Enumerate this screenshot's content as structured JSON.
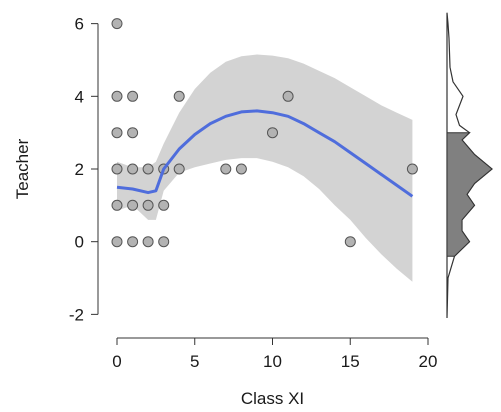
{
  "chart_data": {
    "type": "scatter",
    "xlabel": "Class XI",
    "ylabel": "Teacher",
    "xlim": [
      -0.5,
      19.5
    ],
    "ylim": [
      -2.1,
      6.1
    ],
    "x_ticks": [
      0,
      5,
      10,
      15,
      20
    ],
    "y_ticks": [
      -2,
      0,
      2,
      4,
      6
    ],
    "x_tick_labels": [
      "0",
      "5",
      "10",
      "15",
      "20"
    ],
    "y_tick_labels": [
      "-2",
      "0",
      "2",
      "4",
      "6"
    ],
    "grid": false,
    "points": [
      {
        "x": 0,
        "y": 6
      },
      {
        "x": 0,
        "y": 4
      },
      {
        "x": 1,
        "y": 4
      },
      {
        "x": 4,
        "y": 4
      },
      {
        "x": 11,
        "y": 4
      },
      {
        "x": 0,
        "y": 3
      },
      {
        "x": 1,
        "y": 3
      },
      {
        "x": 10,
        "y": 3
      },
      {
        "x": 0,
        "y": 2
      },
      {
        "x": 1,
        "y": 2
      },
      {
        "x": 2,
        "y": 2
      },
      {
        "x": 3,
        "y": 2
      },
      {
        "x": 4,
        "y": 2
      },
      {
        "x": 7,
        "y": 2
      },
      {
        "x": 8,
        "y": 2
      },
      {
        "x": 19,
        "y": 2
      },
      {
        "x": 0,
        "y": 1
      },
      {
        "x": 1,
        "y": 1
      },
      {
        "x": 2,
        "y": 1
      },
      {
        "x": 3,
        "y": 1
      },
      {
        "x": 0,
        "y": 0
      },
      {
        "x": 1,
        "y": 0
      },
      {
        "x": 2,
        "y": 0
      },
      {
        "x": 3,
        "y": 0
      },
      {
        "x": 15,
        "y": 0
      }
    ],
    "smooth_fit": {
      "x": [
        0,
        1,
        2,
        2.5,
        3,
        4,
        5,
        6,
        7,
        8,
        9,
        10,
        11,
        12,
        13,
        14,
        15,
        16,
        17,
        18,
        19
      ],
      "y": [
        1.5,
        1.45,
        1.35,
        1.4,
        2.0,
        2.55,
        2.95,
        3.25,
        3.45,
        3.57,
        3.6,
        3.55,
        3.45,
        3.25,
        3.0,
        2.75,
        2.45,
        2.15,
        1.85,
        1.55,
        1.25
      ],
      "lower": [
        0.85,
        1.0,
        0.6,
        0.6,
        1.4,
        1.9,
        2.05,
        2.15,
        2.25,
        2.3,
        2.3,
        2.2,
        2.05,
        1.8,
        1.45,
        1.0,
        0.6,
        0.1,
        -0.35,
        -0.75,
        -1.1
      ],
      "upper": [
        2.2,
        2.05,
        2.05,
        2.2,
        2.7,
        3.55,
        4.2,
        4.65,
        4.95,
        5.1,
        5.15,
        5.12,
        5.05,
        4.9,
        4.7,
        4.5,
        4.25,
        4.0,
        3.75,
        3.55,
        3.35
      ],
      "line_color": "#4f6ddc",
      "band_color": "#d3d3d3"
    },
    "marginal_density_y": {
      "y": [
        -2.1,
        -1.0,
        -0.4,
        0.0,
        0.3,
        0.6,
        1.0,
        1.3,
        1.6,
        2.0,
        2.4,
        2.8,
        3.0,
        3.2,
        3.5,
        4.0,
        4.4,
        4.8,
        5.2,
        5.6,
        6.0,
        6.3
      ],
      "density": [
        0.0,
        0.02,
        0.15,
        0.45,
        0.3,
        0.3,
        0.55,
        0.4,
        0.55,
        0.9,
        0.55,
        0.3,
        0.45,
        0.25,
        0.18,
        0.32,
        0.12,
        0.06,
        0.05,
        0.04,
        0.02,
        0.0
      ],
      "fill_color": "#808080"
    },
    "point_fill": "#b3b3b3",
    "point_stroke": "#555555"
  }
}
